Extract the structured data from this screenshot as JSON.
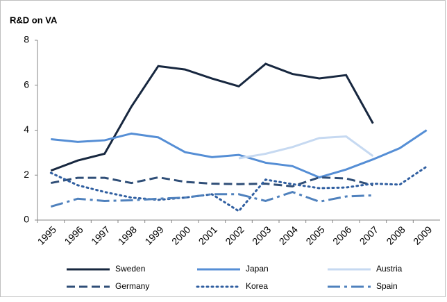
{
  "chart_data": {
    "type": "line",
    "title": "R&D on VA",
    "categories": [
      "1995",
      "1996",
      "1997",
      "1998",
      "1999",
      "2000",
      "2001",
      "2002",
      "2003",
      "2004",
      "2005",
      "2006",
      "2007",
      "2008",
      "2009"
    ],
    "ylim": [
      0,
      8
    ],
    "yticks": [
      0,
      2,
      4,
      6,
      8
    ],
    "grid": false,
    "legend": "bottom",
    "series": [
      {
        "name": "Sweden",
        "color": "#17273f",
        "dash": "solid",
        "values": [
          2.2,
          2.65,
          2.95,
          5.05,
          6.85,
          6.7,
          6.3,
          5.95,
          6.95,
          6.5,
          6.3,
          6.45,
          4.3,
          null,
          null
        ]
      },
      {
        "name": "Japan",
        "color": "#558ed5",
        "dash": "solid",
        "values": [
          3.6,
          3.48,
          3.55,
          3.85,
          3.68,
          3.02,
          2.8,
          2.9,
          2.55,
          2.4,
          1.9,
          2.25,
          2.7,
          3.2,
          4.0
        ]
      },
      {
        "name": "Austria",
        "color": "#c6d9f1",
        "dash": "solid",
        "values": [
          null,
          null,
          null,
          null,
          null,
          null,
          null,
          2.75,
          2.95,
          3.25,
          3.65,
          3.72,
          2.85,
          null,
          null
        ]
      },
      {
        "name": "Germany",
        "color": "#2f4e77",
        "dash": "dash",
        "values": [
          1.65,
          1.88,
          1.88,
          1.65,
          1.9,
          1.7,
          1.62,
          1.6,
          1.62,
          1.5,
          1.9,
          1.85,
          1.55,
          null,
          null
        ]
      },
      {
        "name": "Korea",
        "color": "#2f5ea0",
        "dash": "dot",
        "values": [
          2.1,
          1.55,
          1.25,
          1.0,
          0.9,
          1.0,
          1.15,
          0.4,
          1.8,
          1.6,
          1.42,
          1.45,
          1.62,
          1.58,
          2.38
        ]
      },
      {
        "name": "Spain",
        "color": "#4f81bd",
        "dash": "dashdot",
        "values": [
          0.6,
          0.95,
          0.85,
          0.88,
          0.95,
          1.0,
          1.15,
          1.15,
          0.85,
          1.25,
          0.82,
          1.05,
          1.1,
          null,
          null
        ]
      }
    ]
  }
}
